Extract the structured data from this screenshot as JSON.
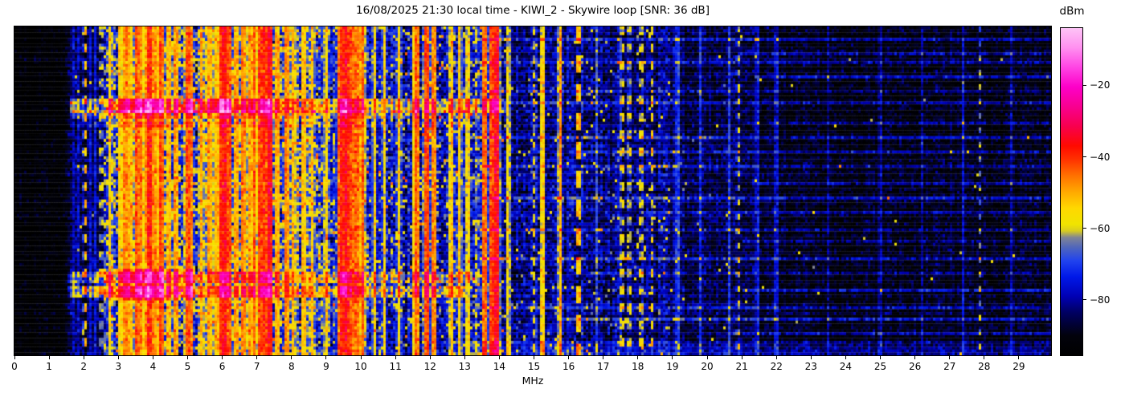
{
  "title": "16/08/2025 21:30 local time - KIWI_2 - Skywire loop [SNR: 36 dB]",
  "station": "KIWI_2",
  "antenna": "Skywire loop",
  "snr_db": 36,
  "timestamp_local": "16/08/2025 21:30",
  "colorbar": {
    "label": "dBm",
    "vmin": -95.5,
    "vmax": -4,
    "ticks": [
      {
        "value": -20,
        "label": "−20"
      },
      {
        "value": -40,
        "label": "−40"
      },
      {
        "value": -60,
        "label": "−60"
      },
      {
        "value": -80,
        "label": "−80"
      }
    ]
  },
  "chart_data": {
    "type": "heatmap",
    "subtype": "radio-spectrogram-waterfall",
    "title": "16/08/2025 21:30 local time - KIWI_2 - Skywire loop [SNR: 36 dB]",
    "xlabel": "MHz",
    "x_range": [
      0,
      29.93
    ],
    "x_ticks": [
      0,
      1,
      2,
      3,
      4,
      5,
      6,
      7,
      8,
      9,
      10,
      11,
      12,
      13,
      14,
      15,
      16,
      17,
      18,
      19,
      20,
      21,
      22,
      23,
      24,
      25,
      26,
      27,
      28,
      29
    ],
    "value_unit": "dBm",
    "value_range": [
      -95.5,
      -4
    ],
    "grid": false,
    "legend": "colorbar-right",
    "colormap": [
      [
        0.0,
        "#000000"
      ],
      [
        0.06,
        "#02020c"
      ],
      [
        0.13,
        "#000060"
      ],
      [
        0.18,
        "#0000b4"
      ],
      [
        0.24,
        "#0018e8"
      ],
      [
        0.29,
        "#2244ee"
      ],
      [
        0.33,
        "#5066bb"
      ],
      [
        0.36,
        "#808495"
      ],
      [
        0.38,
        "#d8cc20"
      ],
      [
        0.4,
        "#f0e400"
      ],
      [
        0.45,
        "#ffd800"
      ],
      [
        0.5,
        "#ffa800"
      ],
      [
        0.55,
        "#ff7000"
      ],
      [
        0.6,
        "#ff3000"
      ],
      [
        0.64,
        "#ff0a00"
      ],
      [
        0.7,
        "#f8004e"
      ],
      [
        0.76,
        "#f80090"
      ],
      [
        0.82,
        "#fd00c8"
      ],
      [
        0.88,
        "#ff44e4"
      ],
      [
        0.94,
        "#ff90f0"
      ],
      [
        1.0,
        "#fdc4f6"
      ]
    ],
    "noise_regions": [
      {
        "f0": 0.0,
        "f1": 1.55,
        "floor": -93,
        "cv": 1.0,
        "sv": 2.5,
        "yp": 0.0,
        "rp": 0
      },
      {
        "f0": 1.55,
        "f1": 2.58,
        "floor": -86,
        "cv": 2.0,
        "sv": 4.0,
        "yp": 0.01,
        "rp": 0
      },
      {
        "f0": 2.58,
        "f1": 8.85,
        "floor": -70,
        "cv": 5.0,
        "sv": 7.0,
        "yp": 0.22,
        "rp": 0.03
      },
      {
        "f0": 8.85,
        "f1": 14.1,
        "floor": -76,
        "cv": 4.0,
        "sv": 6.0,
        "yp": 0.1,
        "rp": 0.012
      },
      {
        "f0": 14.1,
        "f1": 18.9,
        "floor": -82,
        "cv": 2.5,
        "sv": 5.0,
        "yp": 0.025,
        "rp": 0
      },
      {
        "f0": 18.9,
        "f1": 21.5,
        "floor": -86,
        "cv": 2.0,
        "sv": 4.0,
        "yp": 0.008,
        "rp": 0
      },
      {
        "f0": 21.5,
        "f1": 29.95,
        "floor": -90,
        "cv": 1.5,
        "sv": 3.5,
        "yp": 0.002,
        "rp": 0
      }
    ],
    "carriers": [
      {
        "f": 1.72,
        "w": 0.015,
        "lv": -78
      },
      {
        "f": 1.86,
        "w": 0.015,
        "lv": -77
      },
      {
        "f": 2.04,
        "w": 0.02,
        "lv": -52,
        "d": [
          6,
          3
        ]
      },
      {
        "f": 2.2,
        "w": 0.015,
        "lv": -76
      },
      {
        "f": 2.35,
        "w": 0.015,
        "lv": -75
      },
      {
        "f": 2.5,
        "w": 0.02,
        "lv": -62,
        "d": [
          6,
          3
        ]
      },
      {
        "f": 2.75,
        "w": 0.03,
        "lv": -57
      },
      {
        "f": 3.05,
        "w": 0.03,
        "lv": -55
      },
      {
        "f": 3.2,
        "w": 0.03,
        "lv": -48
      },
      {
        "f": 3.33,
        "w": 0.03,
        "lv": -50
      },
      {
        "f": 3.53,
        "w": 0.04,
        "lv": -42
      },
      {
        "f": 3.63,
        "w": 0.03,
        "lv": -46
      },
      {
        "f": 3.78,
        "w": 0.03,
        "lv": -50
      },
      {
        "f": 3.9,
        "w": 0.09,
        "lv": -39
      },
      {
        "f": 4.05,
        "w": 0.04,
        "lv": -48
      },
      {
        "f": 4.22,
        "w": 0.05,
        "lv": -41
      },
      {
        "f": 4.47,
        "w": 0.03,
        "lv": -52
      },
      {
        "f": 4.65,
        "w": 0.04,
        "lv": -49
      },
      {
        "f": 5.0,
        "w": 0.05,
        "lv": -42
      },
      {
        "f": 5.1,
        "w": 0.03,
        "lv": -47
      },
      {
        "f": 5.4,
        "w": 0.03,
        "lv": -51
      },
      {
        "f": 5.62,
        "w": 0.04,
        "lv": -49
      },
      {
        "f": 5.8,
        "w": 0.03,
        "lv": -52
      },
      {
        "f": 5.97,
        "w": 0.06,
        "lv": -40
      },
      {
        "f": 6.07,
        "w": 0.05,
        "lv": -36
      },
      {
        "f": 6.19,
        "w": 0.05,
        "lv": -42
      },
      {
        "f": 6.4,
        "w": 0.03,
        "lv": -50
      },
      {
        "f": 6.6,
        "w": 0.03,
        "lv": -46
      },
      {
        "f": 6.78,
        "w": 0.03,
        "lv": -49
      },
      {
        "f": 6.92,
        "w": 0.04,
        "lv": -44
      },
      {
        "f": 7.1,
        "w": 0.05,
        "lv": -41
      },
      {
        "f": 7.22,
        "w": 0.05,
        "lv": -40
      },
      {
        "f": 7.36,
        "w": 0.04,
        "lv": -34
      },
      {
        "f": 7.58,
        "w": 0.03,
        "lv": -50
      },
      {
        "f": 7.85,
        "w": 0.04,
        "lv": -47
      },
      {
        "f": 8.05,
        "w": 0.03,
        "lv": -51
      },
      {
        "f": 8.35,
        "w": 0.03,
        "lv": -54
      },
      {
        "f": 8.6,
        "w": 0.03,
        "lv": -53
      },
      {
        "f": 9.0,
        "w": 0.03,
        "lv": -55
      },
      {
        "f": 9.45,
        "w": 0.08,
        "lv": -38
      },
      {
        "f": 9.57,
        "w": 0.06,
        "lv": -35
      },
      {
        "f": 9.72,
        "w": 0.05,
        "lv": -42
      },
      {
        "f": 9.88,
        "w": 0.04,
        "lv": -45
      },
      {
        "f": 10.05,
        "w": 0.04,
        "lv": -44
      },
      {
        "f": 10.4,
        "w": 0.03,
        "lv": -55
      },
      {
        "f": 10.68,
        "w": 0.03,
        "lv": -56
      },
      {
        "f": 11.1,
        "w": 0.03,
        "lv": -54
      },
      {
        "f": 11.6,
        "w": 0.05,
        "lv": -44
      },
      {
        "f": 11.9,
        "w": 0.05,
        "lv": -42
      },
      {
        "f": 12.1,
        "w": 0.04,
        "lv": -47
      },
      {
        "f": 12.62,
        "w": 0.03,
        "lv": -52
      },
      {
        "f": 12.85,
        "w": 0.03,
        "lv": -54
      },
      {
        "f": 13.1,
        "w": 0.04,
        "lv": -56
      },
      {
        "f": 13.57,
        "w": 0.04,
        "lv": -45
      },
      {
        "f": 13.8,
        "w": 0.06,
        "lv": -41
      },
      {
        "f": 13.92,
        "w": 0.05,
        "lv": -36
      },
      {
        "f": 14.25,
        "w": 0.03,
        "lv": -57
      },
      {
        "f": 14.99,
        "w": 0.02,
        "lv": -60,
        "d": [
          5,
          3
        ]
      },
      {
        "f": 15.25,
        "w": 0.02,
        "lv": -55
      },
      {
        "f": 15.75,
        "w": 0.02,
        "lv": -50
      },
      {
        "f": 16.28,
        "w": 0.03,
        "lv": -52,
        "d": [
          10,
          6
        ]
      },
      {
        "f": 16.8,
        "w": 0.02,
        "lv": -68
      },
      {
        "f": 17.55,
        "w": 0.02,
        "lv": -58,
        "d": [
          6,
          3
        ]
      },
      {
        "f": 17.75,
        "w": 0.02,
        "lv": -62,
        "d": [
          6,
          3
        ]
      },
      {
        "f": 18.1,
        "w": 0.02,
        "lv": -60,
        "d": [
          6,
          3
        ]
      },
      {
        "f": 18.42,
        "w": 0.02,
        "lv": -58,
        "d": [
          6,
          3
        ]
      },
      {
        "f": 19.15,
        "w": 0.02,
        "lv": -70
      },
      {
        "f": 19.8,
        "w": 0.02,
        "lv": -72
      },
      {
        "f": 20.65,
        "w": 0.02,
        "lv": -70
      },
      {
        "f": 20.9,
        "w": 0.02,
        "lv": -61,
        "d": [
          5,
          2
        ]
      },
      {
        "f": 21.45,
        "w": 0.02,
        "lv": -75
      },
      {
        "f": 22.0,
        "w": 0.02,
        "lv": -77
      },
      {
        "f": 23.5,
        "w": 0.02,
        "lv": -82
      },
      {
        "f": 25.0,
        "w": 0.02,
        "lv": -80
      },
      {
        "f": 26.2,
        "w": 0.02,
        "lv": -82
      },
      {
        "f": 27.4,
        "w": 0.02,
        "lv": -77
      },
      {
        "f": 27.88,
        "w": 0.02,
        "lv": -65,
        "d": [
          5,
          2
        ]
      },
      {
        "f": 28.8,
        "w": 0.02,
        "lv": -80
      }
    ],
    "events": [
      {
        "y0": 0.222,
        "y1": 0.258,
        "f0": 1.6,
        "f1": 14.2,
        "b": 14
      },
      {
        "y0": 0.222,
        "y1": 0.258,
        "f0": 2.5,
        "f1": 6.3,
        "b": 7
      },
      {
        "y0": 0.262,
        "y1": 0.276,
        "f0": 1.6,
        "f1": 13.5,
        "b": 8
      },
      {
        "y0": 0.296,
        "y1": 0.305,
        "f0": 1.8,
        "f1": 13.0,
        "b": 5
      },
      {
        "y0": 0.752,
        "y1": 0.778,
        "f0": 1.5,
        "f1": 13.5,
        "b": 12
      },
      {
        "y0": 0.79,
        "y1": 0.817,
        "f0": 1.5,
        "f1": 13.0,
        "b": 13
      },
      {
        "y0": 0.74,
        "y1": 0.825,
        "f0": 2.4,
        "f1": 5.2,
        "b": 9
      },
      {
        "y0": 0.962,
        "y1": 1.0,
        "f0": 13.2,
        "f1": 29.93,
        "b": 7
      }
    ],
    "hlines": [
      {
        "y": 0.035,
        "f0": 13.3,
        "f1": 29.93,
        "b": 10
      },
      {
        "y": 0.075,
        "f0": 20.9,
        "f1": 29.93,
        "b": 11
      },
      {
        "y": 0.105,
        "f0": 13.3,
        "f1": 29.93,
        "b": 9
      },
      {
        "y": 0.15,
        "f0": 21.4,
        "f1": 29.93,
        "b": 12
      },
      {
        "y": 0.19,
        "f0": 13.3,
        "f1": 29.93,
        "b": 9
      },
      {
        "y": 0.225,
        "f0": 14.2,
        "f1": 29.93,
        "b": 10
      },
      {
        "y": 0.29,
        "f0": 21.0,
        "f1": 29.93,
        "b": 9
      },
      {
        "y": 0.335,
        "f0": 13.3,
        "f1": 29.93,
        "b": 11
      },
      {
        "y": 0.38,
        "f0": 16.0,
        "f1": 29.93,
        "b": 9
      },
      {
        "y": 0.425,
        "f0": 13.3,
        "f1": 29.93,
        "b": 10
      },
      {
        "y": 0.475,
        "f0": 21.3,
        "f1": 29.93,
        "b": 9
      },
      {
        "y": 0.52,
        "f0": 13.3,
        "f1": 29.93,
        "b": 12
      },
      {
        "y": 0.565,
        "f0": 18.0,
        "f1": 29.93,
        "b": 9
      },
      {
        "y": 0.61,
        "f0": 13.3,
        "f1": 29.93,
        "b": 10
      },
      {
        "y": 0.65,
        "f0": 21.0,
        "f1": 29.93,
        "b": 9
      },
      {
        "y": 0.7,
        "f0": 13.3,
        "f1": 29.93,
        "b": 11
      },
      {
        "y": 0.745,
        "f0": 16.5,
        "f1": 29.93,
        "b": 10
      },
      {
        "y": 0.8,
        "f0": 21.0,
        "f1": 29.93,
        "b": 12
      },
      {
        "y": 0.85,
        "f0": 13.3,
        "f1": 29.93,
        "b": 10
      },
      {
        "y": 0.885,
        "f0": 15.8,
        "f1": 29.93,
        "b": 13
      },
      {
        "y": 0.93,
        "f0": 20.5,
        "f1": 29.93,
        "b": 11
      }
    ],
    "render": {
      "cols": 430,
      "rows": 114,
      "seed": 97
    }
  }
}
